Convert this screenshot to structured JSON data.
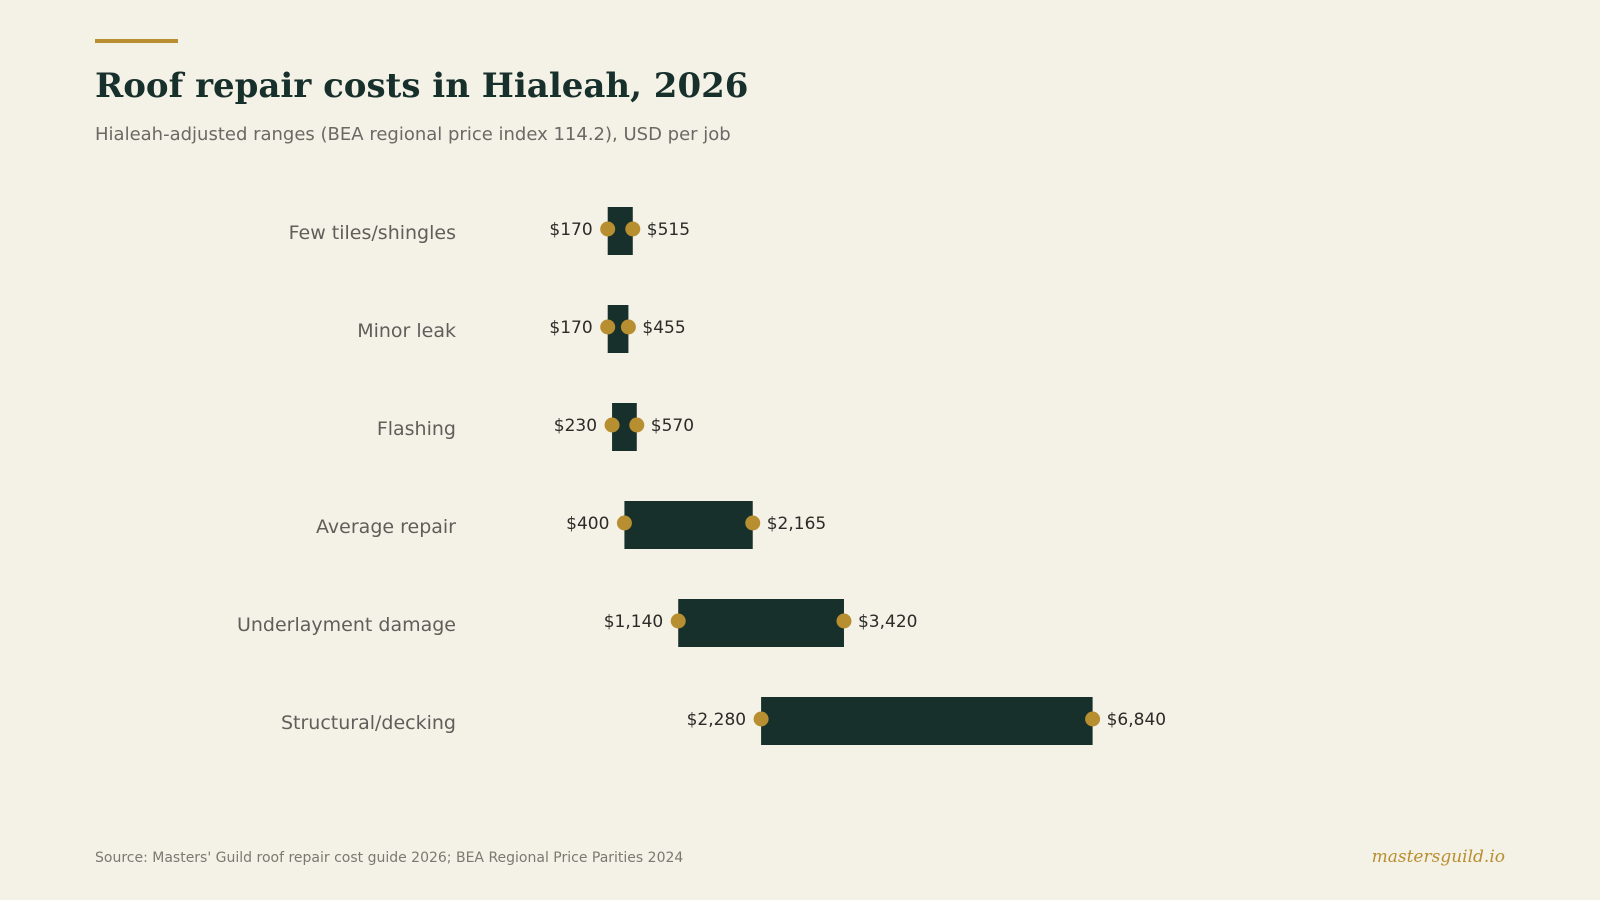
{
  "colors": {
    "background": "#f4f1e7",
    "bar": "#17302b",
    "accent": "#b88f30",
    "label": "#5f5f59",
    "value_text": "#2b2b27"
  },
  "footer": {
    "source": "Source: Masters' Guild roof repair cost guide 2026; BEA Regional Price Parities 2024",
    "brand": "mastersguild.io"
  },
  "chart_data": {
    "type": "bar",
    "orientation": "horizontal-range",
    "title": "Roof repair costs in Hialeah, 2026",
    "subtitle": "Hialeah-adjusted ranges (BEA regional price index 114.2), USD per job",
    "xlabel": "",
    "ylabel": "",
    "grid": false,
    "categories": [
      "Few tiles/shingles",
      "Minor leak",
      "Flashing",
      "Average repair",
      "Underlayment damage",
      "Structural/decking"
    ],
    "series": [
      {
        "values_low": [
          170,
          170,
          230,
          400,
          1140,
          2280
        ],
        "values_high": [
          515,
          455,
          570,
          2165,
          3420,
          6840
        ]
      }
    ],
    "low_labels": [
      "$170",
      "$170",
      "$230",
      "$400",
      "$1,140",
      "$2,280"
    ],
    "high_labels": [
      "$515",
      "$455",
      "$570",
      "$2,165",
      "$3,420",
      "$6,840"
    ]
  }
}
